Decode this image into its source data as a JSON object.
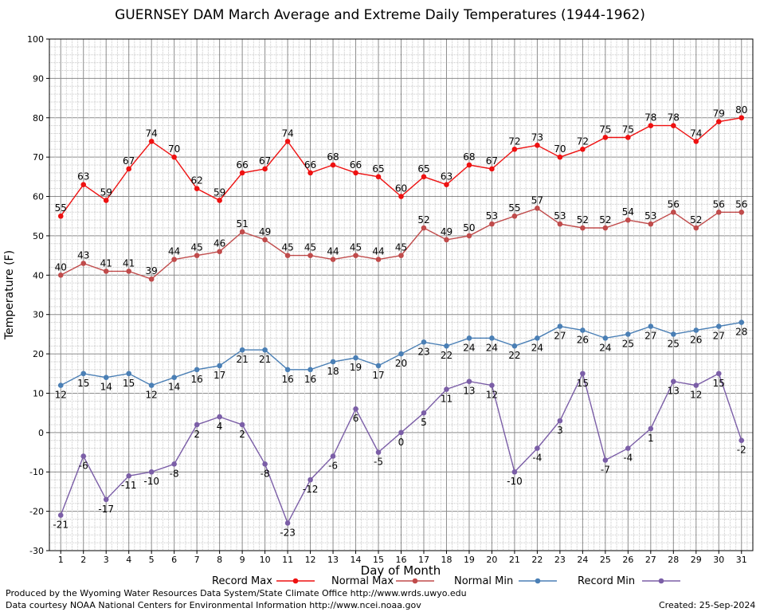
{
  "chart_data": {
    "type": "line",
    "title": "GUERNSEY DAM March Average and Extreme Daily Temperatures (1944-1962)",
    "xlabel": "Day of Month",
    "ylabel": "Temperature (F)",
    "x": [
      1,
      2,
      3,
      4,
      5,
      6,
      7,
      8,
      9,
      10,
      11,
      12,
      13,
      14,
      15,
      16,
      17,
      18,
      19,
      20,
      21,
      22,
      23,
      24,
      25,
      26,
      27,
      28,
      29,
      30,
      31
    ],
    "ylim": [
      -30,
      100
    ],
    "yticks": [
      -30,
      -20,
      -10,
      0,
      10,
      20,
      30,
      40,
      50,
      60,
      70,
      80,
      90,
      100
    ],
    "grid": true,
    "legend_position": "bottom",
    "series": [
      {
        "name": "Record Max",
        "color": "#ee1111",
        "label_position": "above",
        "values": [
          55,
          63,
          59,
          67,
          74,
          70,
          62,
          59,
          66,
          67,
          74,
          66,
          68,
          66,
          65,
          60,
          65,
          63,
          68,
          67,
          72,
          73,
          70,
          72,
          75,
          75,
          78,
          78,
          74,
          79,
          80
        ]
      },
      {
        "name": "Normal Max",
        "color": "#c04b4b",
        "label_position": "above",
        "values": [
          40,
          43,
          41,
          41,
          39,
          44,
          45,
          46,
          51,
          49,
          45,
          45,
          44,
          45,
          44,
          45,
          52,
          49,
          50,
          53,
          55,
          57,
          53,
          52,
          52,
          54,
          53,
          56,
          52,
          56,
          56
        ]
      },
      {
        "name": "Normal Min",
        "color": "#4a7fb5",
        "label_position": "below",
        "values": [
          12,
          15,
          14,
          15,
          12,
          14,
          16,
          17,
          21,
          21,
          16,
          16,
          18,
          19,
          17,
          20,
          23,
          22,
          24,
          24,
          22,
          24,
          27,
          26,
          24,
          25,
          27,
          25,
          26,
          27,
          28
        ]
      },
      {
        "name": "Record Min",
        "color": "#7b5ea7",
        "label_position": "below",
        "values": [
          -21,
          -6,
          -17,
          -11,
          -10,
          -8,
          2,
          4,
          2,
          -8,
          -23,
          -12,
          -6,
          6,
          -5,
          0,
          5,
          11,
          13,
          12,
          -10,
          -4,
          3,
          15,
          -7,
          -4,
          1,
          13,
          12,
          15,
          -2
        ]
      }
    ]
  },
  "credits": {
    "produced_by": "Produced by the Wyoming Water Resources Data System/State Climate Office http://www.wrds.uwyo.edu",
    "data_courtesy": "Data courtesy NOAA National Centers for Environmental Information http://www.ncei.noaa.gov",
    "created": "Created:  25-Sep-2024"
  }
}
